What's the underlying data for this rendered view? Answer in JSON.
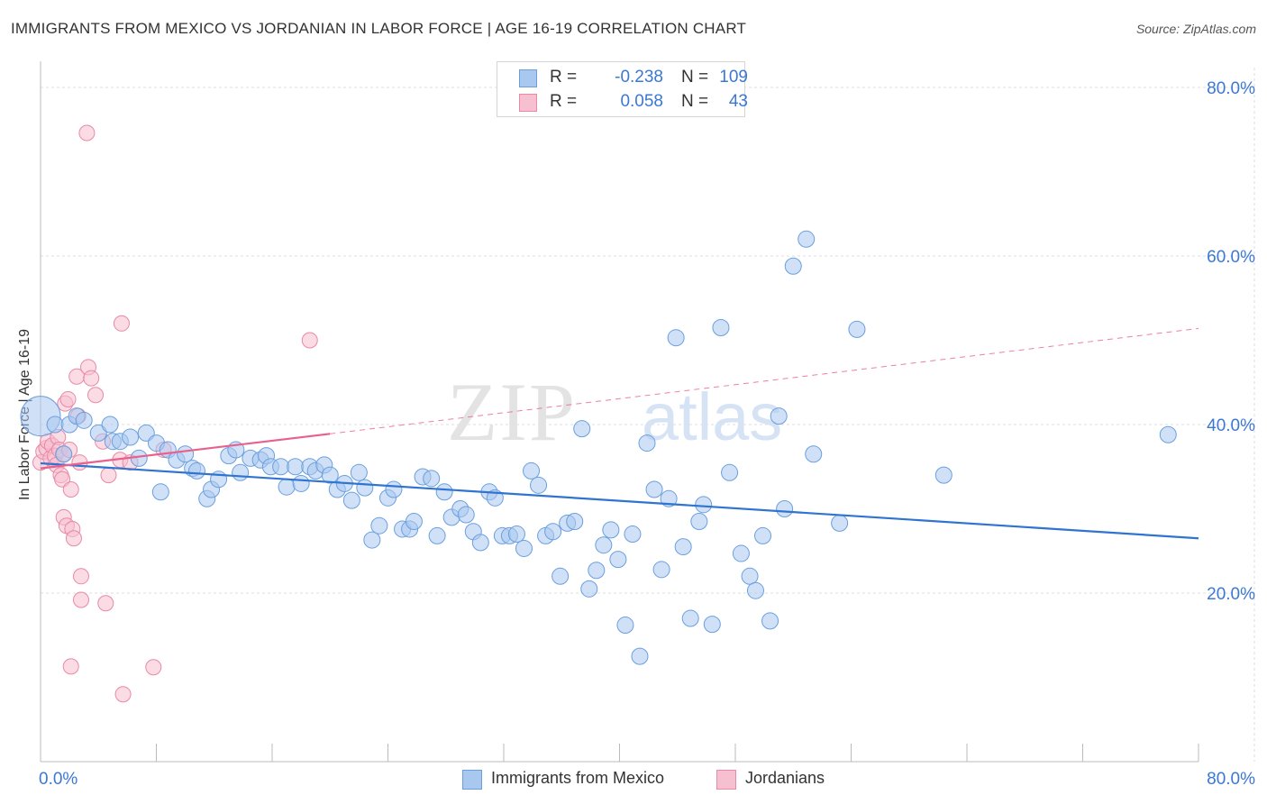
{
  "title": "IMMIGRANTS FROM MEXICO VS JORDANIAN IN LABOR FORCE | AGE 16-19 CORRELATION CHART",
  "source": "Source: ZipAtlas.com",
  "watermark": {
    "zip": "ZIP",
    "atlas": "atlas"
  },
  "legend_top": [
    {
      "r_label": "R =",
      "r_value": "-0.238",
      "n_label": "N =",
      "n_value": "109"
    },
    {
      "r_label": "R =",
      "r_value": "0.058",
      "n_label": "N =",
      "n_value": "43"
    }
  ],
  "colors": {
    "blue_fill": "#a9c8f0",
    "blue_stroke": "#6a9fde",
    "blue_line": "#2f74d0",
    "pink_fill": "#f7c0d0",
    "pink_stroke": "#e889a6",
    "pink_line": "#e8608c",
    "tick_label": "#3b78d4",
    "grid": "#dddddd"
  },
  "chart_data": {
    "type": "scatter",
    "title": "IMMIGRANTS FROM MEXICO VS JORDANIAN IN LABOR FORCE | AGE 16-19 CORRELATION CHART",
    "xlabel": "",
    "ylabel": "In Labor Force | Age 16-19",
    "xlim": [
      0,
      80
    ],
    "ylim": [
      0,
      80
    ],
    "x_tick_labels": [
      "0.0%",
      "80.0%"
    ],
    "y_ticks": [
      20,
      40,
      60,
      80
    ],
    "y_tick_labels": [
      "20.0%",
      "40.0%",
      "60.0%",
      "80.0%"
    ],
    "grid": true,
    "legend_position": "bottom",
    "series": [
      {
        "name": "Immigrants from Mexico",
        "color": "#a9c8f0",
        "r": -0.238,
        "n": 109,
        "trend": {
          "x": [
            0,
            80
          ],
          "y": [
            35.4,
            26.5
          ],
          "style": "solid"
        },
        "points": [
          [
            0.0,
            41.0
          ],
          [
            1.0,
            40.0
          ],
          [
            1.6,
            36.5
          ],
          [
            2.0,
            40.0
          ],
          [
            2.5,
            41.0
          ],
          [
            3.0,
            40.5
          ],
          [
            4.0,
            39.0
          ],
          [
            4.8,
            40.0
          ],
          [
            5.0,
            38.0
          ],
          [
            5.5,
            38.0
          ],
          [
            6.2,
            38.5
          ],
          [
            6.8,
            36.0
          ],
          [
            7.3,
            39.0
          ],
          [
            8.0,
            37.8
          ],
          [
            8.3,
            32.0
          ],
          [
            8.8,
            37.0
          ],
          [
            9.4,
            35.8
          ],
          [
            10.0,
            36.5
          ],
          [
            10.5,
            34.8
          ],
          [
            10.8,
            34.5
          ],
          [
            11.5,
            31.2
          ],
          [
            11.8,
            32.3
          ],
          [
            12.3,
            33.5
          ],
          [
            13.0,
            36.3
          ],
          [
            13.5,
            37.0
          ],
          [
            13.8,
            34.3
          ],
          [
            14.5,
            36.0
          ],
          [
            15.2,
            35.8
          ],
          [
            15.6,
            36.3
          ],
          [
            15.9,
            35.0
          ],
          [
            16.6,
            35.0
          ],
          [
            17.0,
            32.6
          ],
          [
            17.6,
            35.0
          ],
          [
            18.0,
            33.0
          ],
          [
            18.6,
            35.0
          ],
          [
            19.0,
            34.5
          ],
          [
            19.6,
            35.2
          ],
          [
            20.0,
            34.0
          ],
          [
            20.5,
            32.3
          ],
          [
            21.0,
            33.0
          ],
          [
            21.5,
            31.0
          ],
          [
            22.0,
            34.3
          ],
          [
            22.4,
            32.5
          ],
          [
            22.9,
            26.3
          ],
          [
            23.4,
            28.0
          ],
          [
            24.0,
            31.3
          ],
          [
            24.4,
            32.3
          ],
          [
            25.0,
            27.6
          ],
          [
            25.5,
            27.6
          ],
          [
            25.8,
            28.5
          ],
          [
            26.4,
            33.8
          ],
          [
            27.0,
            33.6
          ],
          [
            27.4,
            26.8
          ],
          [
            27.9,
            32.0
          ],
          [
            28.4,
            29.0
          ],
          [
            29.0,
            30.0
          ],
          [
            29.4,
            29.3
          ],
          [
            29.9,
            27.3
          ],
          [
            30.4,
            26.0
          ],
          [
            31.0,
            32.0
          ],
          [
            31.4,
            31.3
          ],
          [
            31.9,
            26.8
          ],
          [
            32.4,
            26.8
          ],
          [
            32.9,
            27.0
          ],
          [
            33.4,
            25.3
          ],
          [
            33.9,
            34.5
          ],
          [
            34.4,
            32.8
          ],
          [
            34.9,
            26.8
          ],
          [
            35.4,
            27.3
          ],
          [
            35.9,
            22.0
          ],
          [
            36.4,
            28.3
          ],
          [
            36.9,
            28.5
          ],
          [
            37.4,
            39.5
          ],
          [
            37.9,
            20.5
          ],
          [
            38.4,
            22.7
          ],
          [
            38.9,
            25.7
          ],
          [
            39.4,
            27.5
          ],
          [
            39.9,
            24.0
          ],
          [
            40.4,
            16.2
          ],
          [
            40.9,
            27.0
          ],
          [
            41.4,
            12.5
          ],
          [
            41.9,
            37.8
          ],
          [
            42.4,
            32.3
          ],
          [
            42.9,
            22.8
          ],
          [
            43.4,
            31.2
          ],
          [
            43.9,
            50.3
          ],
          [
            44.4,
            25.5
          ],
          [
            44.9,
            17.0
          ],
          [
            45.5,
            28.5
          ],
          [
            45.8,
            30.5
          ],
          [
            46.4,
            16.3
          ],
          [
            47.0,
            51.5
          ],
          [
            47.6,
            34.3
          ],
          [
            48.4,
            24.7
          ],
          [
            49.0,
            22.0
          ],
          [
            49.4,
            20.3
          ],
          [
            49.9,
            26.8
          ],
          [
            50.4,
            16.7
          ],
          [
            51.0,
            41.0
          ],
          [
            51.4,
            30.0
          ],
          [
            52.0,
            58.8
          ],
          [
            52.9,
            62.0
          ],
          [
            53.4,
            36.5
          ],
          [
            55.2,
            28.3
          ],
          [
            56.4,
            51.3
          ],
          [
            62.4,
            34.0
          ],
          [
            77.9,
            38.8
          ]
        ],
        "point_sizes": {
          "0": 22
        }
      },
      {
        "name": "Jordanians",
        "color": "#f7c0d0",
        "r": 0.058,
        "n": 43,
        "trend": {
          "x": [
            0,
            20,
            80
          ],
          "y": [
            34.8,
            38.9,
            51.4
          ],
          "style": "solid-then-dashed"
        },
        "points": [
          [
            0.0,
            35.5
          ],
          [
            0.2,
            36.8
          ],
          [
            0.4,
            37.2
          ],
          [
            0.5,
            38.0
          ],
          [
            0.7,
            36.0
          ],
          [
            0.8,
            37.5
          ],
          [
            1.0,
            36.3
          ],
          [
            1.1,
            35.2
          ],
          [
            1.2,
            38.5
          ],
          [
            1.3,
            37.0
          ],
          [
            1.4,
            34.0
          ],
          [
            1.5,
            33.5
          ],
          [
            1.6,
            36.5
          ],
          [
            1.7,
            42.5
          ],
          [
            1.6,
            29.0
          ],
          [
            1.8,
            28.0
          ],
          [
            1.9,
            43.0
          ],
          [
            2.0,
            37.0
          ],
          [
            2.1,
            32.3
          ],
          [
            2.2,
            27.6
          ],
          [
            2.3,
            26.5
          ],
          [
            2.5,
            45.7
          ],
          [
            2.6,
            41.0
          ],
          [
            2.7,
            35.5
          ],
          [
            2.8,
            19.2
          ],
          [
            2.8,
            22.0
          ],
          [
            2.1,
            11.3
          ],
          [
            3.2,
            74.6
          ],
          [
            3.3,
            46.8
          ],
          [
            3.5,
            45.5
          ],
          [
            3.8,
            43.5
          ],
          [
            4.3,
            38.0
          ],
          [
            4.5,
            18.8
          ],
          [
            4.7,
            34.0
          ],
          [
            5.5,
            35.8
          ],
          [
            5.6,
            52.0
          ],
          [
            5.7,
            8.0
          ],
          [
            6.2,
            35.5
          ],
          [
            7.8,
            11.2
          ],
          [
            8.5,
            37.0
          ],
          [
            18.6,
            50.0
          ]
        ]
      }
    ]
  }
}
